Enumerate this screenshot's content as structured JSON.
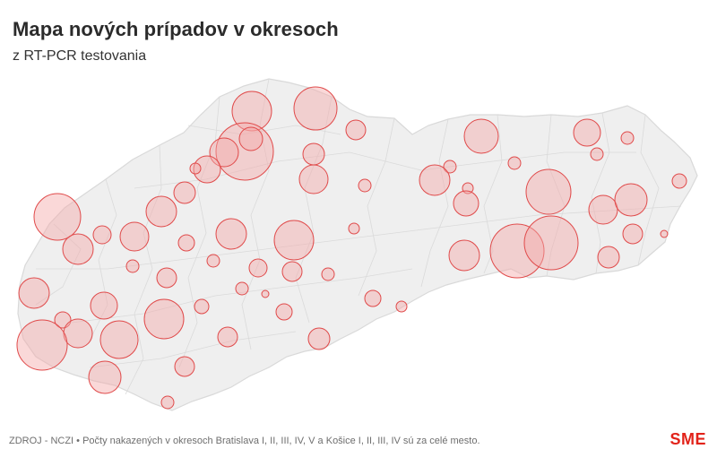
{
  "header": {
    "title": "Mapa nových prípadov v okresoch",
    "subtitle": "z RT-PCR testovania"
  },
  "footer": {
    "source": "ZDROJ - NCZI • Počty nakazených v okresoch Bratislava I, II, III, IV, V a Košice I, II, III, IV sú za celé mesto.",
    "logo": "SME"
  },
  "colors": {
    "bubble_fill": "#f3a8a8",
    "bubble_stroke": "#e04a4a",
    "map_fill": "#efefef",
    "map_stroke": "#dddddd"
  }
}
